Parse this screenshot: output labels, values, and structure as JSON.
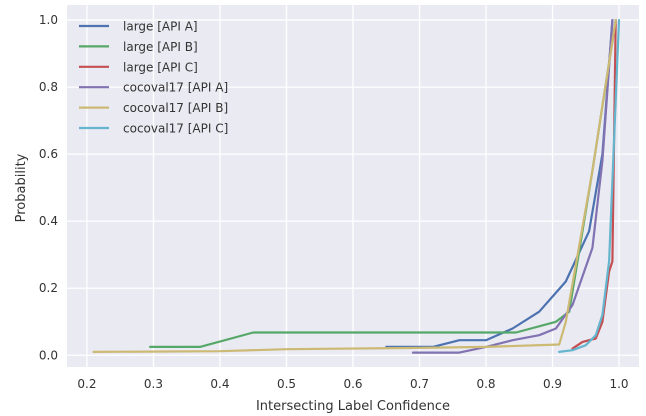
{
  "chart_data": {
    "type": "line",
    "title": "",
    "xlabel": "Intersecting Label Confidence",
    "ylabel": "Probability",
    "xlim": [
      0.17,
      1.03
    ],
    "ylim": [
      -0.035,
      1.045
    ],
    "xticks": [
      0.2,
      0.3,
      0.4,
      0.5,
      0.6,
      0.7,
      0.8,
      0.9,
      1.0
    ],
    "xtick_labels": [
      "0.2",
      "0.3",
      "0.4",
      "0.5",
      "0.6",
      "0.7",
      "0.8",
      "0.9",
      "1.0"
    ],
    "yticks": [
      0.0,
      0.2,
      0.4,
      0.6,
      0.8,
      1.0
    ],
    "ytick_labels": [
      "0.0",
      "0.2",
      "0.4",
      "0.6",
      "0.8",
      "1.0"
    ],
    "grid": true,
    "legend_position": "top-left",
    "background": "#eaeaf2",
    "series": [
      {
        "name": "large [API A]",
        "color": "#4c72b0",
        "points": [
          [
            0.65,
            0.025
          ],
          [
            0.72,
            0.025
          ],
          [
            0.76,
            0.045
          ],
          [
            0.8,
            0.045
          ],
          [
            0.84,
            0.08
          ],
          [
            0.88,
            0.13
          ],
          [
            0.92,
            0.22
          ],
          [
            0.955,
            0.37
          ],
          [
            0.975,
            0.6
          ],
          [
            0.99,
            1.0
          ]
        ]
      },
      {
        "name": "large [API B]",
        "color": "#55a868",
        "points": [
          [
            0.295,
            0.025
          ],
          [
            0.37,
            0.025
          ],
          [
            0.45,
            0.068
          ],
          [
            0.7,
            0.068
          ],
          [
            0.845,
            0.068
          ],
          [
            0.905,
            0.1
          ],
          [
            0.925,
            0.13
          ],
          [
            0.96,
            0.55
          ],
          [
            0.995,
            1.0
          ]
        ]
      },
      {
        "name": "large [API C]",
        "color": "#c44e52",
        "points": [
          [
            0.93,
            0.02
          ],
          [
            0.945,
            0.04
          ],
          [
            0.955,
            0.045
          ],
          [
            0.965,
            0.05
          ],
          [
            0.975,
            0.1
          ],
          [
            0.985,
            0.25
          ],
          [
            0.99,
            0.28
          ],
          [
            0.995,
            1.0
          ]
        ]
      },
      {
        "name": "cocoval17 [API A]",
        "color": "#8172b2",
        "points": [
          [
            0.69,
            0.008
          ],
          [
            0.76,
            0.008
          ],
          [
            0.8,
            0.025
          ],
          [
            0.84,
            0.045
          ],
          [
            0.88,
            0.06
          ],
          [
            0.905,
            0.08
          ],
          [
            0.93,
            0.15
          ],
          [
            0.96,
            0.32
          ],
          [
            0.975,
            0.58
          ],
          [
            0.99,
            1.0
          ]
        ]
      },
      {
        "name": "cocoval17 [API B]",
        "color": "#ccb974",
        "points": [
          [
            0.21,
            0.01
          ],
          [
            0.4,
            0.012
          ],
          [
            0.5,
            0.018
          ],
          [
            0.7,
            0.022
          ],
          [
            0.8,
            0.025
          ],
          [
            0.91,
            0.032
          ],
          [
            0.92,
            0.1
          ],
          [
            0.96,
            0.55
          ],
          [
            0.995,
            1.0
          ]
        ]
      },
      {
        "name": "cocoval17 [API C]",
        "color": "#64b5cd",
        "points": [
          [
            0.91,
            0.01
          ],
          [
            0.93,
            0.015
          ],
          [
            0.95,
            0.03
          ],
          [
            0.965,
            0.06
          ],
          [
            0.975,
            0.12
          ],
          [
            0.985,
            0.28
          ],
          [
            1.0,
            1.0
          ]
        ]
      }
    ]
  }
}
